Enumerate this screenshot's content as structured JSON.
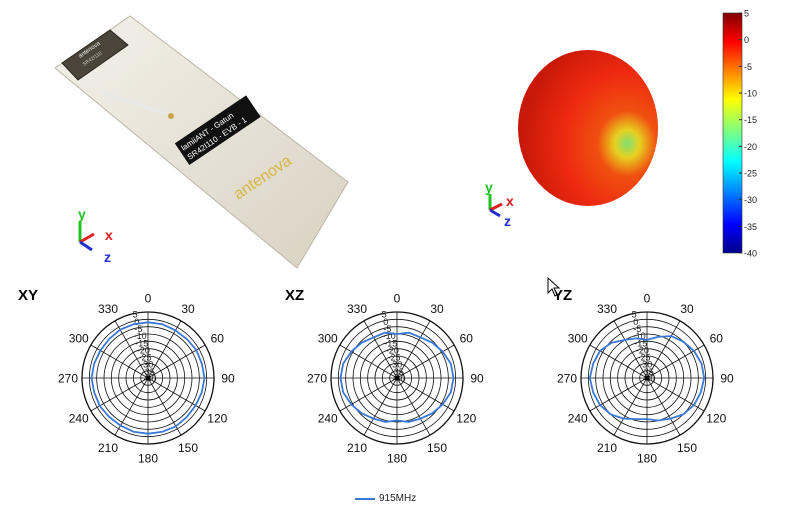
{
  "board": {
    "module_brand": "antenova",
    "module_part": "SR42I110",
    "label_line1": "lamiiANT - Gatun",
    "label_line2": "SR42I110 - EVB - 1",
    "logo": "antenova"
  },
  "axes_triad": {
    "x": "x",
    "y": "y",
    "z": "z",
    "colors": {
      "x": "#e02020",
      "y": "#20c020",
      "z": "#2030d0"
    }
  },
  "colorbar": {
    "ticks": [
      "5",
      "0",
      "-5",
      "-10",
      "-15",
      "-20",
      "-25",
      "-30",
      "-35",
      "-40"
    ],
    "range": [
      -40,
      5
    ],
    "colormap": "jet"
  },
  "legend": {
    "series": "915MHz",
    "color": "#3a78d6"
  },
  "chart_data": [
    {
      "type": "polar",
      "title": "XY",
      "angle_ticks": [
        "0",
        "30",
        "60",
        "90",
        "120",
        "150",
        "180",
        "210",
        "240",
        "270",
        "300",
        "330"
      ],
      "radial_ticks": [
        "5",
        "0",
        "-5",
        "-10",
        "-15",
        "-20",
        "-25",
        "-30",
        "-35",
        "-40"
      ],
      "rlim": [
        -40,
        5
      ],
      "angles": [
        0,
        15,
        30,
        45,
        60,
        75,
        90,
        105,
        120,
        135,
        150,
        165,
        180,
        195,
        210,
        225,
        240,
        255,
        270,
        285,
        300,
        315,
        330,
        345
      ],
      "series": [
        {
          "name": "915MHz",
          "values": [
            -2,
            -2,
            -2.5,
            -2.5,
            -2,
            -2,
            -1.5,
            -2,
            -2.5,
            -2.5,
            -2,
            -2,
            -2,
            -2,
            -2.5,
            -2.5,
            -2,
            -2,
            -1.5,
            -2,
            -2.5,
            -2.5,
            -2,
            -2
          ]
        }
      ]
    },
    {
      "type": "polar",
      "title": "XZ",
      "angle_ticks": [
        "0",
        "30",
        "60",
        "90",
        "120",
        "150",
        "180",
        "210",
        "240",
        "270",
        "300",
        "330"
      ],
      "radial_ticks": [
        "5",
        "0",
        "-5",
        "-10",
        "-15",
        "-20",
        "-25",
        "-30",
        "-35",
        "-40"
      ],
      "rlim": [
        -40,
        5
      ],
      "angles": [
        0,
        15,
        30,
        45,
        60,
        75,
        90,
        105,
        120,
        135,
        150,
        165,
        180,
        195,
        210,
        225,
        240,
        255,
        270,
        285,
        300,
        315,
        330,
        345
      ],
      "series": [
        {
          "name": "915MHz",
          "values": [
            -10,
            -8,
            -8,
            -6,
            -4,
            -2,
            -1.5,
            -2,
            -4,
            -6,
            -8,
            -9,
            -11,
            -9,
            -8,
            -6,
            -4,
            -2,
            -1.5,
            -2,
            -4,
            -6,
            -8,
            -8
          ]
        }
      ]
    },
    {
      "type": "polar",
      "title": "YZ",
      "angle_ticks": [
        "0",
        "30",
        "60",
        "90",
        "120",
        "150",
        "180",
        "210",
        "240",
        "270",
        "300",
        "330"
      ],
      "radial_ticks": [
        "5",
        "0",
        "-5",
        "-10",
        "-15",
        "-20",
        "-25",
        "-30",
        "-35",
        "-40"
      ],
      "rlim": [
        -40,
        5
      ],
      "angles": [
        0,
        15,
        30,
        45,
        60,
        75,
        90,
        105,
        120,
        135,
        150,
        165,
        180,
        195,
        210,
        225,
        240,
        255,
        270,
        285,
        300,
        315,
        330,
        345
      ],
      "series": [
        {
          "name": "915MHz",
          "values": [
            -14,
            -11,
            -7,
            -5,
            -3,
            -1.5,
            -1,
            -2,
            -3,
            -5,
            -8,
            -10,
            -12,
            -11,
            -8,
            -5,
            -3,
            -2,
            -1,
            -2,
            -3,
            -6,
            -10,
            -12
          ]
        }
      ]
    }
  ]
}
